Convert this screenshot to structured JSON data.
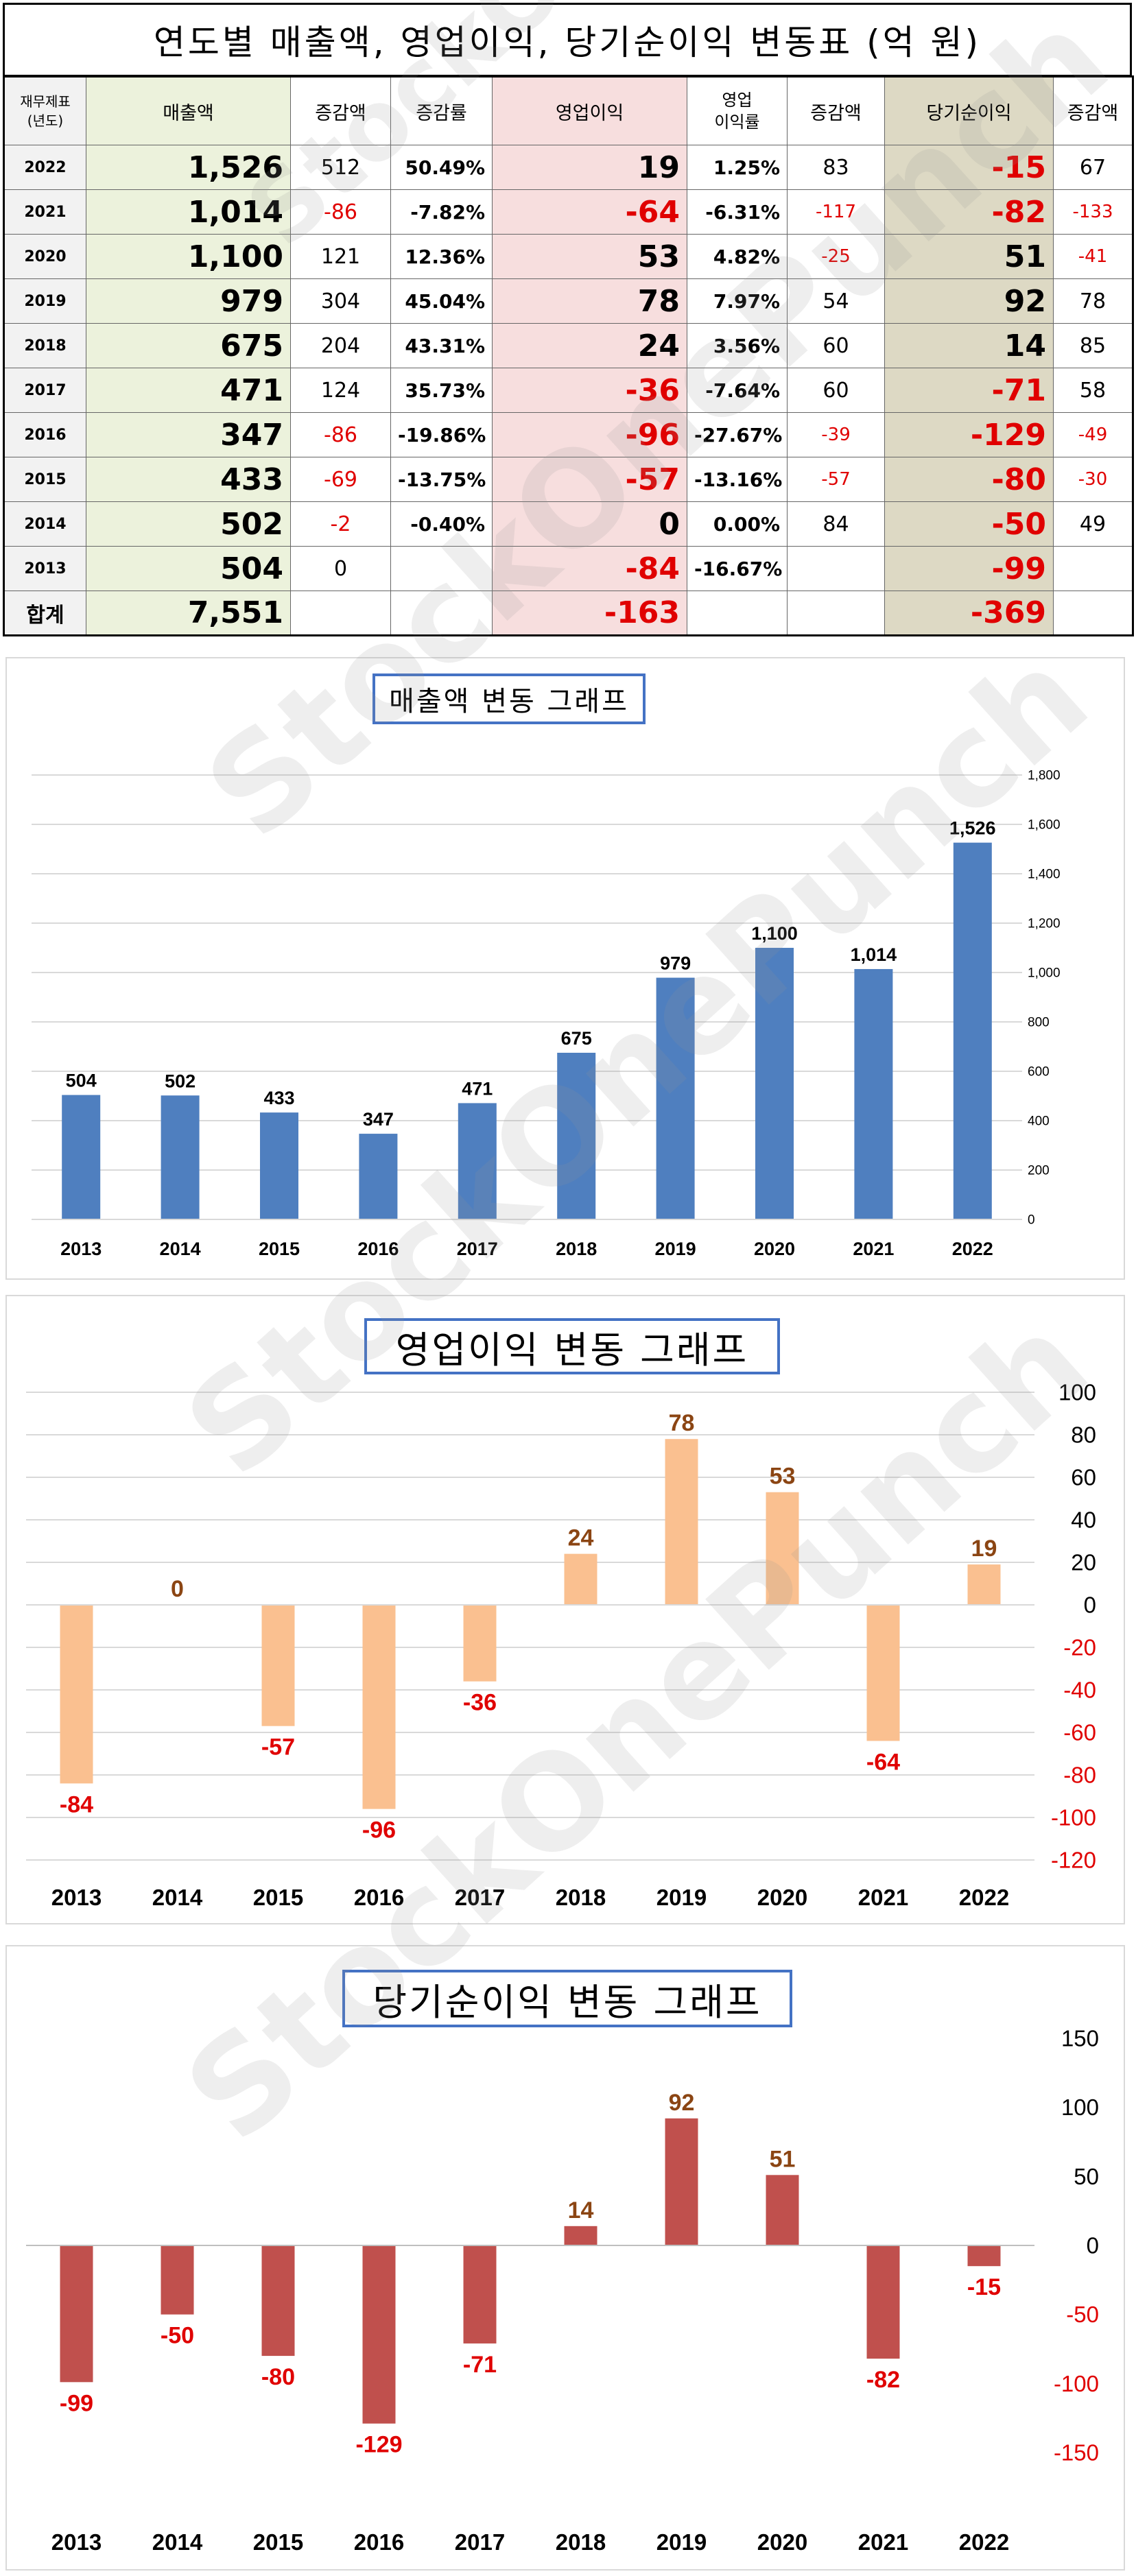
{
  "title": "연도별 매출액, 영업이익, 당기순이익 변동표  (억 원)",
  "watermark": "StockOnePunch",
  "table": {
    "headers": {
      "year_line1": "재무제표",
      "year_line2": "(년도)",
      "revenue": "매출액",
      "revenue_change": "증감액",
      "revenue_rate": "증감률",
      "op_income": "영업이익",
      "op_margin_line1": "영업",
      "op_margin_line2": "이익률",
      "op_change": "증감액",
      "net_income": "당기순이익",
      "net_change": "증감액"
    },
    "rows": [
      {
        "year": "2022",
        "revenue": "1,526",
        "rev_chg": "512",
        "rev_rate": "50.49%",
        "op": "19",
        "op_margin": "1.25%",
        "op_chg": "83",
        "ni": "-15",
        "ni_chg": "67"
      },
      {
        "year": "2021",
        "revenue": "1,014",
        "rev_chg": "-86",
        "rev_rate": "-7.82%",
        "op": "-64",
        "op_margin": "-6.31%",
        "op_chg": "-117",
        "ni": "-82",
        "ni_chg": "-133"
      },
      {
        "year": "2020",
        "revenue": "1,100",
        "rev_chg": "121",
        "rev_rate": "12.36%",
        "op": "53",
        "op_margin": "4.82%",
        "op_chg": "-25",
        "ni": "51",
        "ni_chg": "-41"
      },
      {
        "year": "2019",
        "revenue": "979",
        "rev_chg": "304",
        "rev_rate": "45.04%",
        "op": "78",
        "op_margin": "7.97%",
        "op_chg": "54",
        "ni": "92",
        "ni_chg": "78"
      },
      {
        "year": "2018",
        "revenue": "675",
        "rev_chg": "204",
        "rev_rate": "43.31%",
        "op": "24",
        "op_margin": "3.56%",
        "op_chg": "60",
        "ni": "14",
        "ni_chg": "85"
      },
      {
        "year": "2017",
        "revenue": "471",
        "rev_chg": "124",
        "rev_rate": "35.73%",
        "op": "-36",
        "op_margin": "-7.64%",
        "op_chg": "60",
        "ni": "-71",
        "ni_chg": "58"
      },
      {
        "year": "2016",
        "revenue": "347",
        "rev_chg": "-86",
        "rev_rate": "-19.86%",
        "op": "-96",
        "op_margin": "-27.67%",
        "op_chg": "-39",
        "ni": "-129",
        "ni_chg": "-49"
      },
      {
        "year": "2015",
        "revenue": "433",
        "rev_chg": "-69",
        "rev_rate": "-13.75%",
        "op": "-57",
        "op_margin": "-13.16%",
        "op_chg": "-57",
        "ni": "-80",
        "ni_chg": "-30"
      },
      {
        "year": "2014",
        "revenue": "502",
        "rev_chg": "-2",
        "rev_rate": "-0.40%",
        "op": "0",
        "op_margin": "0.00%",
        "op_chg": "84",
        "ni": "-50",
        "ni_chg": "49"
      },
      {
        "year": "2013",
        "revenue": "504",
        "rev_chg": "0",
        "rev_rate": "",
        "op": "-84",
        "op_margin": "-16.67%",
        "op_chg": "",
        "ni": "-99",
        "ni_chg": ""
      }
    ],
    "total": {
      "label": "합계",
      "revenue": "7,551",
      "op": "-163",
      "ni": "-369"
    }
  },
  "colors": {
    "revenue_bar": "#4f7fbf",
    "op_bar": "#fac090",
    "ni_bar": "#c0504d",
    "positive_label_op": "#8b4513",
    "positive_label_ni": "#8b4513",
    "negative_label": "#e00000"
  },
  "chart_data": [
    {
      "type": "bar",
      "title": "매출액 변동 그래프",
      "categories": [
        "2013",
        "2014",
        "2015",
        "2016",
        "2017",
        "2018",
        "2019",
        "2020",
        "2021",
        "2022"
      ],
      "values": [
        504,
        502,
        433,
        347,
        471,
        675,
        979,
        1100,
        1014,
        1526
      ],
      "data_labels": [
        "504",
        "502",
        "433",
        "347",
        "471",
        "675",
        "979",
        "1,100",
        "1,014",
        "1,526"
      ],
      "ylim": [
        0,
        1800
      ],
      "yticks": [
        "0",
        "200",
        "400",
        "600",
        "800",
        "1,000",
        "1,200",
        "1,400",
        "1,600",
        "1,800"
      ],
      "y_axis_position": "right",
      "grid": true,
      "legend": "none"
    },
    {
      "type": "bar",
      "title": "영업이익 변동 그래프",
      "categories": [
        "2013",
        "2014",
        "2015",
        "2016",
        "2017",
        "2018",
        "2019",
        "2020",
        "2021",
        "2022"
      ],
      "values": [
        -84,
        0,
        -57,
        -96,
        -36,
        24,
        78,
        53,
        -64,
        19
      ],
      "data_labels": [
        "-84",
        "0",
        "-57",
        "-96",
        "-36",
        "24",
        "78",
        "53",
        "-64",
        "19"
      ],
      "ylim": [
        -120,
        100
      ],
      "yticks": [
        "-120",
        "-100",
        "-80",
        "-60",
        "-40",
        "-20",
        "0",
        "20",
        "40",
        "60",
        "80",
        "100"
      ],
      "y_axis_position": "right",
      "grid": true,
      "legend": "none"
    },
    {
      "type": "bar",
      "title": "당기순이익 변동 그래프",
      "categories": [
        "2013",
        "2014",
        "2015",
        "2016",
        "2017",
        "2018",
        "2019",
        "2020",
        "2021",
        "2022"
      ],
      "values": [
        -99,
        -50,
        -80,
        -129,
        -71,
        14,
        92,
        51,
        -82,
        -15
      ],
      "data_labels": [
        "-99",
        "-50",
        "-80",
        "-129",
        "-71",
        "14",
        "92",
        "51",
        "-82",
        "-15"
      ],
      "ylim": [
        -150,
        150
      ],
      "yticks": [
        "-150",
        "-100",
        "-50",
        "0",
        "50",
        "100",
        "150"
      ],
      "y_axis_position": "right",
      "grid": false,
      "legend": "none"
    }
  ]
}
